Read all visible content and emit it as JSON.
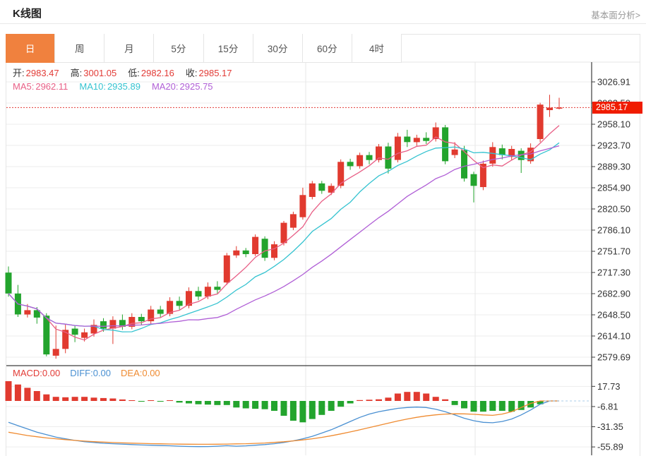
{
  "header": {
    "title": "K线图",
    "analysis_link": "基本面分析>"
  },
  "tabs": {
    "items": [
      "日",
      "周",
      "月",
      "5分",
      "15分",
      "30分",
      "60分",
      "4时"
    ],
    "active_index": 0
  },
  "quote_bar": {
    "ohlc": [
      {
        "label": "开:",
        "value": "2983.47"
      },
      {
        "label": "高:",
        "value": "3001.05"
      },
      {
        "label": "低:",
        "value": "2982.16"
      },
      {
        "label": "收:",
        "value": "2985.17"
      }
    ],
    "ohlc_value_color": "#e23b36",
    "ma": [
      {
        "label": "MA5:",
        "value": "2962.11",
        "color": "#e85f86"
      },
      {
        "label": "MA10:",
        "value": "2935.89",
        "color": "#35c3d0"
      },
      {
        "label": "MA20:",
        "value": "2925.75",
        "color": "#b05fd6"
      }
    ]
  },
  "macd_bar": {
    "items": [
      {
        "label": "MACD:",
        "value": "0.00",
        "color": "#e23b36"
      },
      {
        "label": "DIFF:",
        "value": "0.00",
        "color": "#4a90d2"
      },
      {
        "label": "DEA:",
        "value": "0.00",
        "color": "#ef8b31"
      }
    ]
  },
  "price_tag": {
    "label": "2985.17",
    "bg": "#f01c00"
  },
  "colors": {
    "up": "#e13a2f",
    "down": "#23a42d",
    "ma5": "#e85f86",
    "ma10": "#35c3d0",
    "ma20": "#b05fd6",
    "diff": "#4a90d2",
    "dea": "#ef8b31",
    "price_line": "#e23b36",
    "grid": "#ededed",
    "grid_v": "#e7e7e7",
    "axis": "#3d3d3d",
    "tick_text": "#333333",
    "zero_dash": "#a9cdea",
    "tab_active": "#f0813e"
  },
  "chart_data": {
    "type": "candlestick+macd",
    "main": {
      "y_ticks": [
        "3026.91",
        "2992.50",
        "2958.10",
        "2923.70",
        "2889.30",
        "2854.90",
        "2820.50",
        "2786.10",
        "2751.70",
        "2717.30",
        "2682.90",
        "2648.50",
        "2614.10",
        "2579.69"
      ],
      "current_price": 2985.17,
      "ma_periods": [
        5,
        10,
        20
      ],
      "candles": [
        [
          2717,
          2727,
          2678,
          2683
        ],
        [
          2683,
          2697,
          2645,
          2649
        ],
        [
          2649,
          2666,
          2644,
          2656
        ],
        [
          2656,
          2661,
          2634,
          2644
        ],
        [
          2647,
          2651,
          2581,
          2584
        ],
        [
          2582,
          2631,
          2577,
          2593
        ],
        [
          2593,
          2634,
          2586,
          2624
        ],
        [
          2626,
          2631,
          2604,
          2616
        ],
        [
          2611,
          2626,
          2605,
          2620
        ],
        [
          2618,
          2641,
          2613,
          2632
        ],
        [
          2638,
          2643,
          2621,
          2626
        ],
        [
          2626,
          2646,
          2601,
          2640
        ],
        [
          2640,
          2649,
          2624,
          2629
        ],
        [
          2629,
          2651,
          2625,
          2645
        ],
        [
          2645,
          2650,
          2632,
          2638
        ],
        [
          2638,
          2663,
          2634,
          2657
        ],
        [
          2657,
          2663,
          2644,
          2650
        ],
        [
          2650,
          2677,
          2646,
          2671
        ],
        [
          2671,
          2678,
          2657,
          2663
        ],
        [
          2663,
          2693,
          2659,
          2687
        ],
        [
          2687,
          2694,
          2672,
          2678
        ],
        [
          2678,
          2701,
          2674,
          2694
        ],
        [
          2694,
          2703,
          2683,
          2689
        ],
        [
          2701,
          2749,
          2697,
          2745
        ],
        [
          2745,
          2760,
          2741,
          2753
        ],
        [
          2753,
          2757,
          2742,
          2747
        ],
        [
          2747,
          2779,
          2744,
          2775
        ],
        [
          2772,
          2776,
          2736,
          2741
        ],
        [
          2741,
          2768,
          2737,
          2763
        ],
        [
          2765,
          2801,
          2761,
          2798
        ],
        [
          2790,
          2816,
          2786,
          2812
        ],
        [
          2807,
          2855,
          2803,
          2843
        ],
        [
          2840,
          2866,
          2836,
          2862
        ],
        [
          2862,
          2866,
          2845,
          2850
        ],
        [
          2847,
          2862,
          2843,
          2858
        ],
        [
          2858,
          2901,
          2854,
          2897
        ],
        [
          2897,
          2902,
          2884,
          2890
        ],
        [
          2890,
          2912,
          2886,
          2908
        ],
        [
          2908,
          2913,
          2893,
          2900
        ],
        [
          2900,
          2926,
          2896,
          2922
        ],
        [
          2922,
          2928,
          2878,
          2886
        ],
        [
          2900,
          2944,
          2896,
          2938
        ],
        [
          2938,
          2949,
          2921,
          2929
        ],
        [
          2929,
          2941,
          2923,
          2936
        ],
        [
          2936,
          2945,
          2926,
          2931
        ],
        [
          2934,
          2961,
          2930,
          2953
        ],
        [
          2953,
          2957,
          2893,
          2898
        ],
        [
          2908,
          2929,
          2903,
          2917
        ],
        [
          2916,
          2923,
          2865,
          2870
        ],
        [
          2877,
          2881,
          2831,
          2858
        ],
        [
          2856,
          2899,
          2851,
          2894
        ],
        [
          2894,
          2929,
          2889,
          2921
        ],
        [
          2919,
          2925,
          2901,
          2908
        ],
        [
          2905,
          2923,
          2899,
          2918
        ],
        [
          2915,
          2919,
          2879,
          2900
        ],
        [
          2898,
          2927,
          2894,
          2920
        ],
        [
          2934,
          2993,
          2929,
          2990
        ],
        [
          2981,
          3006,
          2970,
          2985
        ],
        [
          2983.47,
          3001.05,
          2982.16,
          2985.17
        ]
      ]
    },
    "macd": {
      "y_ticks": [
        "17.73",
        "-6.81",
        "-31.35",
        "-55.89"
      ],
      "hist": [
        24,
        20,
        16,
        12,
        8,
        5,
        4.5,
        5,
        5,
        4,
        3.5,
        3,
        1.8,
        0.8,
        -0.8,
        0.7,
        -0.7,
        0.7,
        -2,
        -3,
        -4,
        -4.5,
        -5,
        -5,
        -8,
        -9,
        -9.5,
        -10,
        -12,
        -18,
        -24,
        -26,
        -22,
        -17,
        -12,
        -7,
        -3,
        1,
        1.5,
        2,
        4,
        9,
        11,
        11,
        9,
        5,
        2,
        -5,
        -9,
        -13,
        -13,
        -12,
        -12,
        -13,
        -11,
        -8,
        -4,
        0,
        0
      ],
      "diff": [
        -26,
        -30,
        -34,
        -38,
        -41,
        -44,
        -46,
        -48,
        -49.5,
        -50.5,
        -51.5,
        -52,
        -52.5,
        -53,
        -53.5,
        -53.8,
        -54.2,
        -54.5,
        -55,
        -55.3,
        -55.5,
        -55.4,
        -55,
        -54.4,
        -55,
        -54.6,
        -53.8,
        -53,
        -52,
        -50.5,
        -48.5,
        -46,
        -43,
        -39,
        -35,
        -30,
        -25,
        -20,
        -16,
        -13,
        -11,
        -9,
        -8,
        -7.5,
        -8,
        -10,
        -13,
        -17,
        -21,
        -24,
        -26,
        -26.5,
        -25,
        -22,
        -17,
        -11,
        -4,
        0,
        0
      ],
      "dea": [
        -38,
        -40,
        -42,
        -43.5,
        -45,
        -46,
        -47,
        -48,
        -48.8,
        -49.5,
        -50,
        -50.5,
        -51,
        -51.3,
        -51.6,
        -51.9,
        -52.1,
        -52.3,
        -52.5,
        -52.6,
        -52.7,
        -52.7,
        -52.6,
        -52.4,
        -52.2,
        -52,
        -51.6,
        -51.1,
        -50.4,
        -49.6,
        -48.6,
        -47.4,
        -46,
        -44.3,
        -42.3,
        -40.1,
        -37.7,
        -35.1,
        -32.4,
        -29.7,
        -27,
        -24.4,
        -22,
        -19.9,
        -18.2,
        -16.9,
        -16,
        -15.6,
        -15.7,
        -16.2,
        -17,
        -17.5,
        -16,
        -13,
        -8,
        -3,
        0,
        0,
        0
      ]
    }
  }
}
